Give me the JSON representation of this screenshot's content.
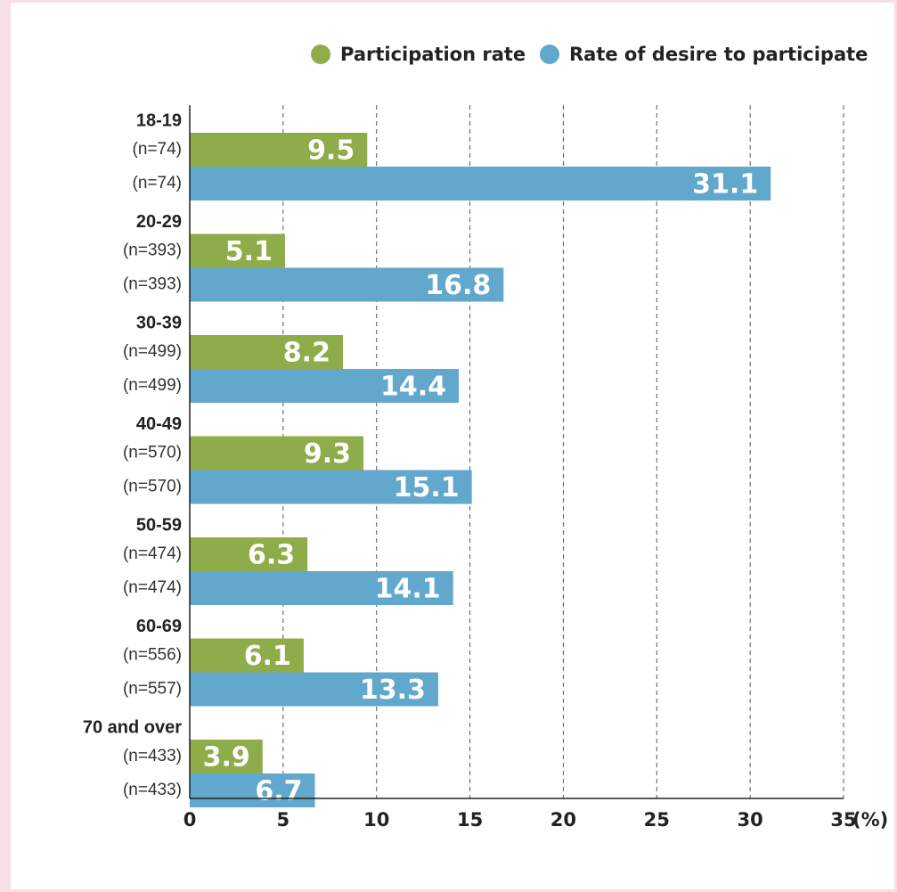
{
  "chart_data": {
    "type": "bar",
    "orientation": "horizontal",
    "categories": [
      "18-19",
      "20-29",
      "30-39",
      "40-49",
      "50-59",
      "60-69",
      "70 and over"
    ],
    "series": [
      {
        "name": "Participation rate",
        "color": "#8fac4a",
        "values": [
          9.5,
          5.1,
          8.2,
          9.3,
          6.3,
          6.1,
          3.9
        ],
        "sample_sizes": [
          "(n=74)",
          "(n=393)",
          "(n=499)",
          "(n=570)",
          "(n=474)",
          "(n=556)",
          "(n=433)"
        ]
      },
      {
        "name": "Rate of desire to participate",
        "color": "#62a7cc",
        "values": [
          31.1,
          16.8,
          14.4,
          15.1,
          14.1,
          13.3,
          6.7
        ],
        "sample_sizes": [
          "(n=74)",
          "(n=393)",
          "(n=499)",
          "(n=570)",
          "(n=474)",
          "(n=557)",
          "(n=433)"
        ]
      }
    ],
    "xlim": [
      0,
      35
    ],
    "xticks": [
      0,
      5,
      10,
      15,
      20,
      25,
      30,
      35
    ],
    "x_unit": "(%)",
    "grid": true,
    "legend": "top right"
  }
}
